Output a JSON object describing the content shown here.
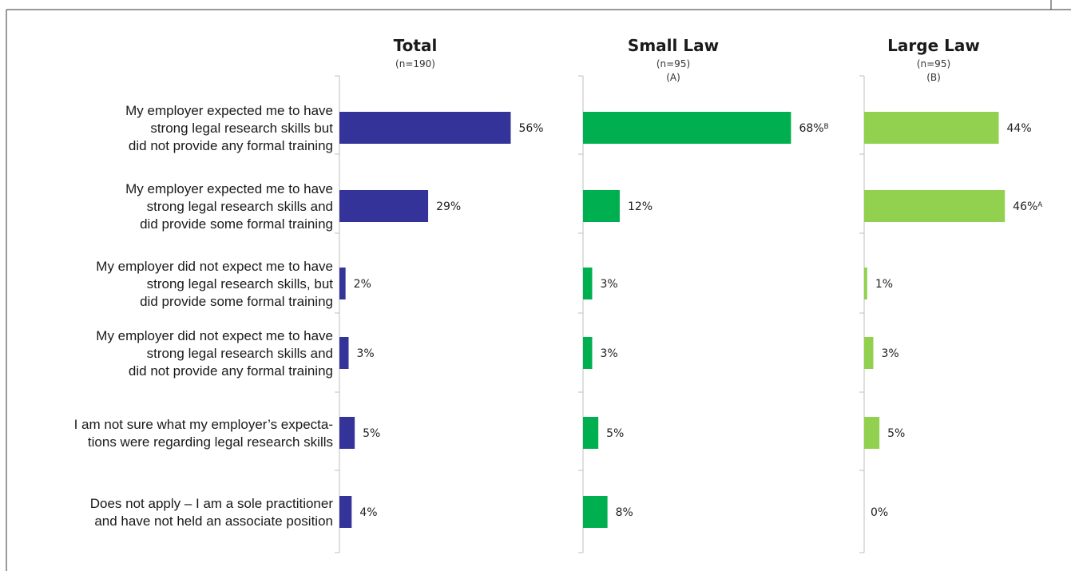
{
  "chart_data": {
    "type": "bar",
    "orientation": "horizontal",
    "categories": [
      [
        "My employer expected me to have",
        "strong legal research skills but",
        "did not provide any formal training"
      ],
      [
        "My employer expected me to have",
        "strong legal research skills and",
        "did provide some formal  training"
      ],
      [
        "My employer did not expect me to have",
        "strong legal research skills, but",
        "did provide some formal training"
      ],
      [
        "My employer did not expect me to have",
        "strong legal research skills and",
        "did not provide any formal training"
      ],
      [
        "I am not sure what my employer’s expecta-",
        "tions were regarding legal research skills"
      ],
      [
        "Does not apply – I am a sole practitioner",
        "and have not held an associate position"
      ]
    ],
    "series": [
      {
        "name": "Total",
        "n_label": "(n=190)",
        "letter": "",
        "color": "#333399",
        "values": [
          56,
          29,
          2,
          3,
          5,
          4
        ],
        "labels": [
          "56%",
          "29%",
          "2%",
          "3%",
          "5%",
          "4%"
        ],
        "sig": [
          "",
          "",
          "",
          "",
          "",
          ""
        ]
      },
      {
        "name": "Small Law",
        "n_label": "(n=95)",
        "letter": "(A)",
        "color": "#00b050",
        "values": [
          68,
          12,
          3,
          3,
          5,
          8
        ],
        "labels": [
          "68%",
          "12%",
          "3%",
          "3%",
          "5%",
          "8%"
        ],
        "sig": [
          "B",
          "",
          "",
          "",
          "",
          ""
        ]
      },
      {
        "name": "Large Law",
        "n_label": "(n=95)",
        "letter": "(B)",
        "color": "#92d050",
        "values": [
          44,
          46,
          1,
          3,
          5,
          0
        ],
        "labels": [
          "44%",
          "46%",
          "1%",
          "3%",
          "5%",
          "0%"
        ],
        "sig": [
          "",
          "A",
          "",
          "",
          "",
          ""
        ]
      }
    ],
    "xlim": [
      0,
      100
    ]
  }
}
